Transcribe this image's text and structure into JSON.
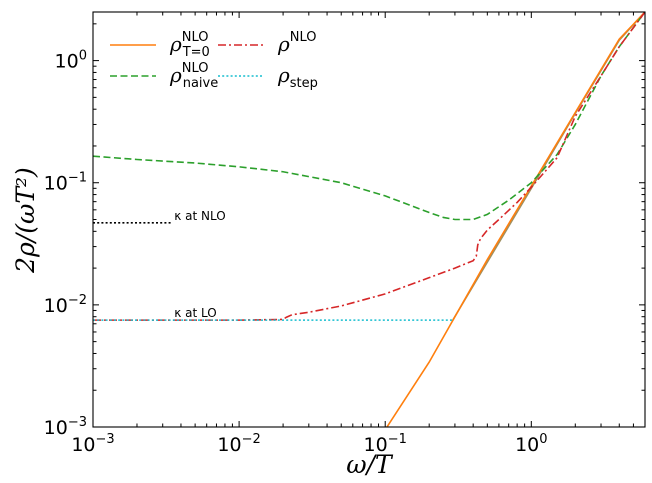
{
  "chart_data": {
    "type": "line",
    "xscale": "log",
    "yscale": "log",
    "xlim": [
      0.001,
      6.0
    ],
    "ylim": [
      0.001,
      2.5
    ],
    "xlabel": "ω/T",
    "ylabel": "2ρ/(ωT²)",
    "xticks": [
      {
        "value": 0.001,
        "base": "10",
        "exp": "−3"
      },
      {
        "value": 0.01,
        "base": "10",
        "exp": "−2"
      },
      {
        "value": 0.1,
        "base": "10",
        "exp": "−1"
      },
      {
        "value": 1,
        "base": "10",
        "exp": "0"
      }
    ],
    "yticks": [
      {
        "value": 0.001,
        "base": "10",
        "exp": "−3"
      },
      {
        "value": 0.01,
        "base": "10",
        "exp": "−2"
      },
      {
        "value": 0.1,
        "base": "10",
        "exp": "−1"
      },
      {
        "value": 1,
        "base": "10",
        "exp": "0"
      }
    ],
    "legend_position": "upper-left",
    "series": [
      {
        "key": "rho_T0",
        "label_main": "ρ",
        "label_sup": "NLO",
        "label_sub": "T=0",
        "color": "#ff7f0e",
        "style": "solid",
        "x": [
          0.1,
          0.2,
          0.5,
          1.0,
          2.0,
          4.0,
          6.0
        ],
        "y": [
          0.00095,
          0.0034,
          0.0235,
          0.094,
          0.376,
          1.5,
          2.5
        ]
      },
      {
        "key": "rho_naive",
        "label_main": "ρ",
        "label_sup": "NLO",
        "label_sub": "naive",
        "color": "#2ca02c",
        "style": "dashed",
        "x": [
          0.001,
          0.002,
          0.005,
          0.01,
          0.02,
          0.05,
          0.1,
          0.15,
          0.2,
          0.25,
          0.3,
          0.4,
          0.5,
          0.7,
          1.0,
          1.5,
          2.0,
          3.0,
          4.0,
          6.0
        ],
        "y": [
          0.165,
          0.155,
          0.145,
          0.135,
          0.123,
          0.1,
          0.078,
          0.065,
          0.057,
          0.052,
          0.05,
          0.05,
          0.055,
          0.072,
          0.1,
          0.17,
          0.3,
          0.75,
          1.3,
          2.5
        ]
      },
      {
        "key": "rho_nlo",
        "label_main": "ρ",
        "label_sup": "NLO",
        "label_sub": "",
        "color": "#d62728",
        "style": "dashdot",
        "x": [
          0.001,
          0.005,
          0.01,
          0.02,
          0.021,
          0.023,
          0.03,
          0.05,
          0.1,
          0.2,
          0.3,
          0.4,
          0.42,
          0.43,
          0.45,
          0.5,
          0.6,
          0.8,
          1.0,
          1.5,
          2.0,
          3.0,
          4.0,
          6.0
        ],
        "y": [
          0.0075,
          0.0075,
          0.0075,
          0.0076,
          0.0079,
          0.0083,
          0.0087,
          0.0098,
          0.0123,
          0.0167,
          0.02,
          0.023,
          0.025,
          0.031,
          0.035,
          0.041,
          0.05,
          0.069,
          0.092,
          0.16,
          0.35,
          0.75,
          1.3,
          2.5
        ]
      },
      {
        "key": "rho_step",
        "label_main": "ρ",
        "label_sup": "",
        "label_sub": "step",
        "color": "#17becf",
        "style": "dotted",
        "x": [
          0.001,
          0.29
        ],
        "y": [
          0.0075,
          0.0075
        ]
      }
    ],
    "extra_lines": [
      {
        "key": "kappa_nlo_line",
        "color": "#000000",
        "style": "dotted",
        "x": [
          0.001,
          0.0035
        ],
        "y": [
          0.047,
          0.047
        ]
      },
      {
        "key": "step_rise",
        "color": "#a09060",
        "style": "solid",
        "x": [
          0.29,
          1.0,
          2.0,
          4.0,
          6.0
        ],
        "y": [
          0.0075,
          0.09,
          0.37,
          1.47,
          2.5
        ]
      }
    ],
    "annotations": [
      {
        "key": "kappa_nlo",
        "text": "κ at NLO",
        "x": 0.0036,
        "y": 0.047
      },
      {
        "key": "kappa_lo",
        "text": "κ at LO",
        "x": 0.0036,
        "y": 0.0075
      }
    ]
  }
}
